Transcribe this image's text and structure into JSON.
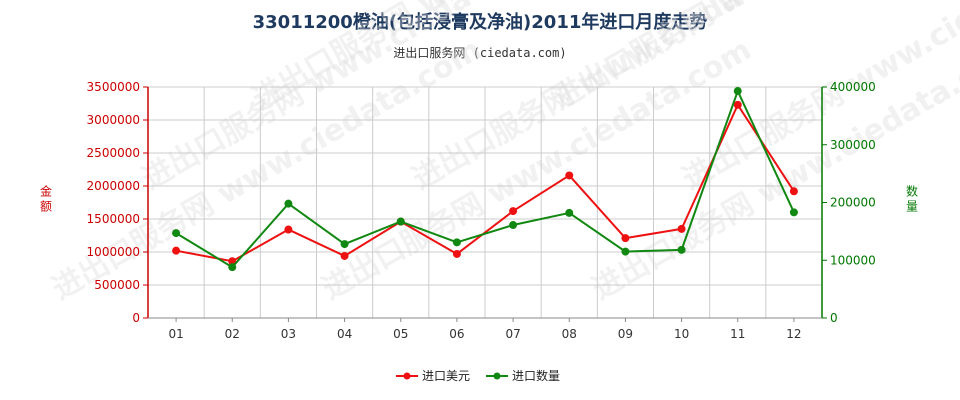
{
  "title": "33011200橙油(包括浸膏及净油)2011年进口月度走势",
  "subtitle": "进出口服务网 (ciedata.com)",
  "watermark": "进出口服务网 www.ciedata.com",
  "colors": {
    "left_axis": "#cc0000",
    "right_axis": "#007700",
    "series_value": "#ee1111",
    "series_qty": "#118811",
    "grid": "#cccccc"
  },
  "chart_data": {
    "type": "line",
    "categories": [
      "01",
      "02",
      "03",
      "04",
      "05",
      "06",
      "07",
      "08",
      "09",
      "10",
      "11",
      "12"
    ],
    "y_left": {
      "label": "金额",
      "lim": [
        0,
        3500000
      ],
      "ticks": [
        "0",
        "500000",
        "1000000",
        "1500000",
        "2000000",
        "2500000",
        "3000000",
        "3500000"
      ]
    },
    "y_right": {
      "label": "数量",
      "lim": [
        0,
        400000
      ],
      "ticks": [
        "0",
        "100000",
        "200000",
        "300000",
        "400000"
      ]
    },
    "series": [
      {
        "name": "进口美元",
        "axis": "left",
        "values": [
          1020000,
          860000,
          1340000,
          940000,
          1460000,
          970000,
          1620000,
          2160000,
          1210000,
          1350000,
          3230000,
          1920000
        ]
      },
      {
        "name": "进口数量",
        "axis": "right",
        "values": [
          147000,
          88000,
          198000,
          128000,
          167000,
          131000,
          161000,
          182000,
          115000,
          118000,
          393000,
          183000
        ]
      }
    ],
    "grid": true,
    "legend_position": "bottom-center"
  }
}
